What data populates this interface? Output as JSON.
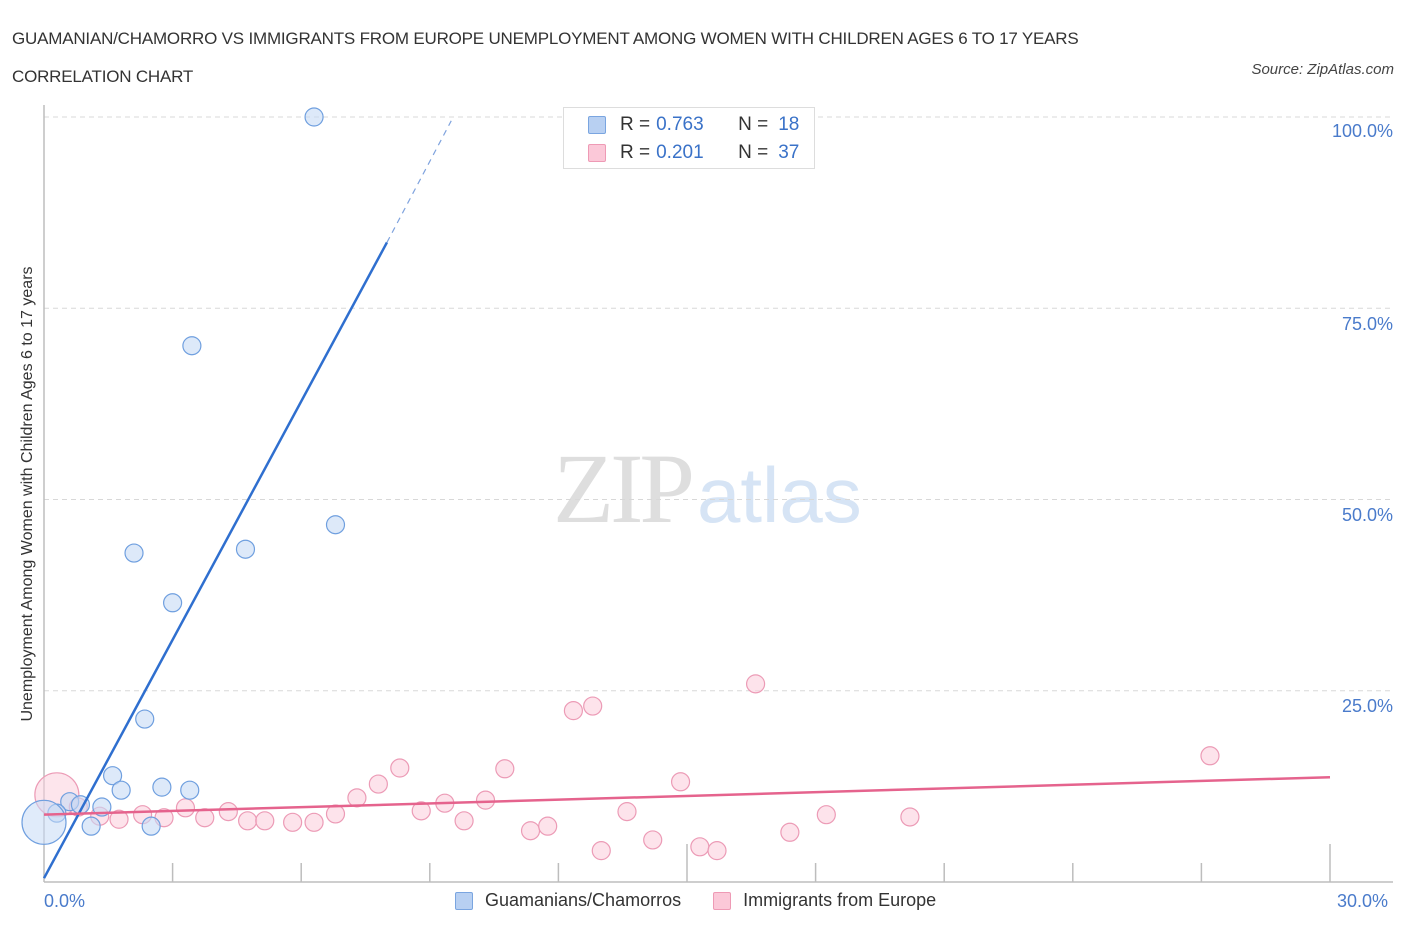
{
  "header": {
    "title": "GUAMANIAN/CHAMORRO VS IMMIGRANTS FROM EUROPE UNEMPLOYMENT AMONG WOMEN WITH CHILDREN AGES 6 TO 17 YEARS CORRELATION CHART",
    "source": "Source: ZipAtlas.com"
  },
  "watermark": {
    "zip": "ZIP",
    "atlas": "atlas"
  },
  "legend": {
    "rows": [
      {
        "r_label": "R =",
        "r_value": "0.763",
        "n_label": "N =",
        "n_value": "18",
        "color": "#b8d0f2",
        "border": "#7aa5e0"
      },
      {
        "r_label": "R =",
        "r_value": "0.201",
        "n_label": "N =",
        "n_value": "37",
        "color": "#fbc8d8",
        "border": "#ee9ab5"
      }
    ]
  },
  "axes": {
    "y_label": "Unemployment Among Women with Children Ages 6 to 17 years",
    "y_ticks": [
      "100.0%",
      "75.0%",
      "50.0%",
      "25.0%"
    ],
    "x_ticks": [
      "0.0%",
      "30.0%"
    ]
  },
  "bottom_legend": [
    {
      "label": "Guamanians/Chamorros",
      "color": "#b8d0f2",
      "border": "#7aa5e0"
    },
    {
      "label": "Immigrants from Europe",
      "color": "#fbc8d8",
      "border": "#ee9ab5"
    }
  ],
  "chart_data": {
    "type": "scatter",
    "title": "GUAMANIAN/CHAMORRO VS IMMIGRANTS FROM EUROPE UNEMPLOYMENT AMONG WOMEN WITH CHILDREN AGES 6 TO 17 YEARS CORRELATION CHART",
    "xlabel": "",
    "ylabel": "Unemployment Among Women with Children Ages 6 to 17 years",
    "xlim": [
      0,
      30
    ],
    "ylim": [
      0,
      100
    ],
    "x_tick_labels": [
      "0.0%",
      "30.0%"
    ],
    "y_tick_labels": [
      "25.0%",
      "50.0%",
      "75.0%",
      "100.0%"
    ],
    "grid": "horizontal dashed",
    "legend_position": "top-center and bottom",
    "series": [
      {
        "name": "Guamanians/Chamorros",
        "color": "#3a78d4",
        "R": 0.763,
        "N": 18,
        "points": [
          {
            "x": 6.3,
            "y": 100.0
          },
          {
            "x": 3.45,
            "y": 70.1
          },
          {
            "x": 6.8,
            "y": 46.7
          },
          {
            "x": 4.7,
            "y": 43.5
          },
          {
            "x": 2.1,
            "y": 43.0
          },
          {
            "x": 3.0,
            "y": 36.5
          },
          {
            "x": 2.35,
            "y": 21.3
          },
          {
            "x": 1.6,
            "y": 13.9
          },
          {
            "x": 1.8,
            "y": 12.0
          },
          {
            "x": 2.75,
            "y": 12.4
          },
          {
            "x": 3.4,
            "y": 12.0
          },
          {
            "x": 1.35,
            "y": 9.8
          },
          {
            "x": 0.6,
            "y": 10.5
          },
          {
            "x": 0.85,
            "y": 10.1
          },
          {
            "x": 0.3,
            "y": 9.0
          },
          {
            "x": 1.1,
            "y": 7.3
          },
          {
            "x": 2.5,
            "y": 7.3
          },
          {
            "x": 0.0,
            "y": 7.8,
            "size": "large"
          }
        ],
        "trendline": {
          "x0": 0,
          "y0": 0.5,
          "x1": 8.0,
          "y1": 83.6,
          "dashed_to": {
            "x": 9.5,
            "y": 99.5
          }
        }
      },
      {
        "name": "Immigrants from Europe",
        "color": "#e8608a",
        "R": 0.201,
        "N": 37,
        "points": [
          {
            "x": 0.3,
            "y": 11.4,
            "size": "large"
          },
          {
            "x": 0.8,
            "y": 9.8
          },
          {
            "x": 1.3,
            "y": 8.6
          },
          {
            "x": 1.75,
            "y": 8.2
          },
          {
            "x": 2.3,
            "y": 8.8
          },
          {
            "x": 2.8,
            "y": 8.4
          },
          {
            "x": 3.3,
            "y": 9.7
          },
          {
            "x": 3.75,
            "y": 8.4
          },
          {
            "x": 4.3,
            "y": 9.2
          },
          {
            "x": 4.75,
            "y": 8.0
          },
          {
            "x": 5.15,
            "y": 8.0
          },
          {
            "x": 5.8,
            "y": 7.8
          },
          {
            "x": 6.3,
            "y": 7.8
          },
          {
            "x": 6.8,
            "y": 8.9
          },
          {
            "x": 7.3,
            "y": 11.0
          },
          {
            "x": 7.8,
            "y": 12.8
          },
          {
            "x": 8.3,
            "y": 14.9
          },
          {
            "x": 8.8,
            "y": 9.3
          },
          {
            "x": 9.35,
            "y": 10.3
          },
          {
            "x": 9.8,
            "y": 8.0
          },
          {
            "x": 10.3,
            "y": 10.7
          },
          {
            "x": 10.75,
            "y": 14.8
          },
          {
            "x": 11.35,
            "y": 6.7
          },
          {
            "x": 11.75,
            "y": 7.3
          },
          {
            "x": 12.35,
            "y": 22.4
          },
          {
            "x": 12.8,
            "y": 23.0
          },
          {
            "x": 13.0,
            "y": 4.1
          },
          {
            "x": 13.6,
            "y": 9.2
          },
          {
            "x": 14.2,
            "y": 5.5
          },
          {
            "x": 14.85,
            "y": 13.1
          },
          {
            "x": 15.3,
            "y": 4.6
          },
          {
            "x": 15.7,
            "y": 4.1
          },
          {
            "x": 16.6,
            "y": 25.9
          },
          {
            "x": 17.4,
            "y": 6.5
          },
          {
            "x": 18.25,
            "y": 8.8
          },
          {
            "x": 20.2,
            "y": 8.5
          },
          {
            "x": 27.2,
            "y": 16.5
          }
        ],
        "trendline": {
          "x0": 0,
          "y0": 8.8,
          "x1": 30,
          "y1": 13.7
        }
      }
    ]
  }
}
